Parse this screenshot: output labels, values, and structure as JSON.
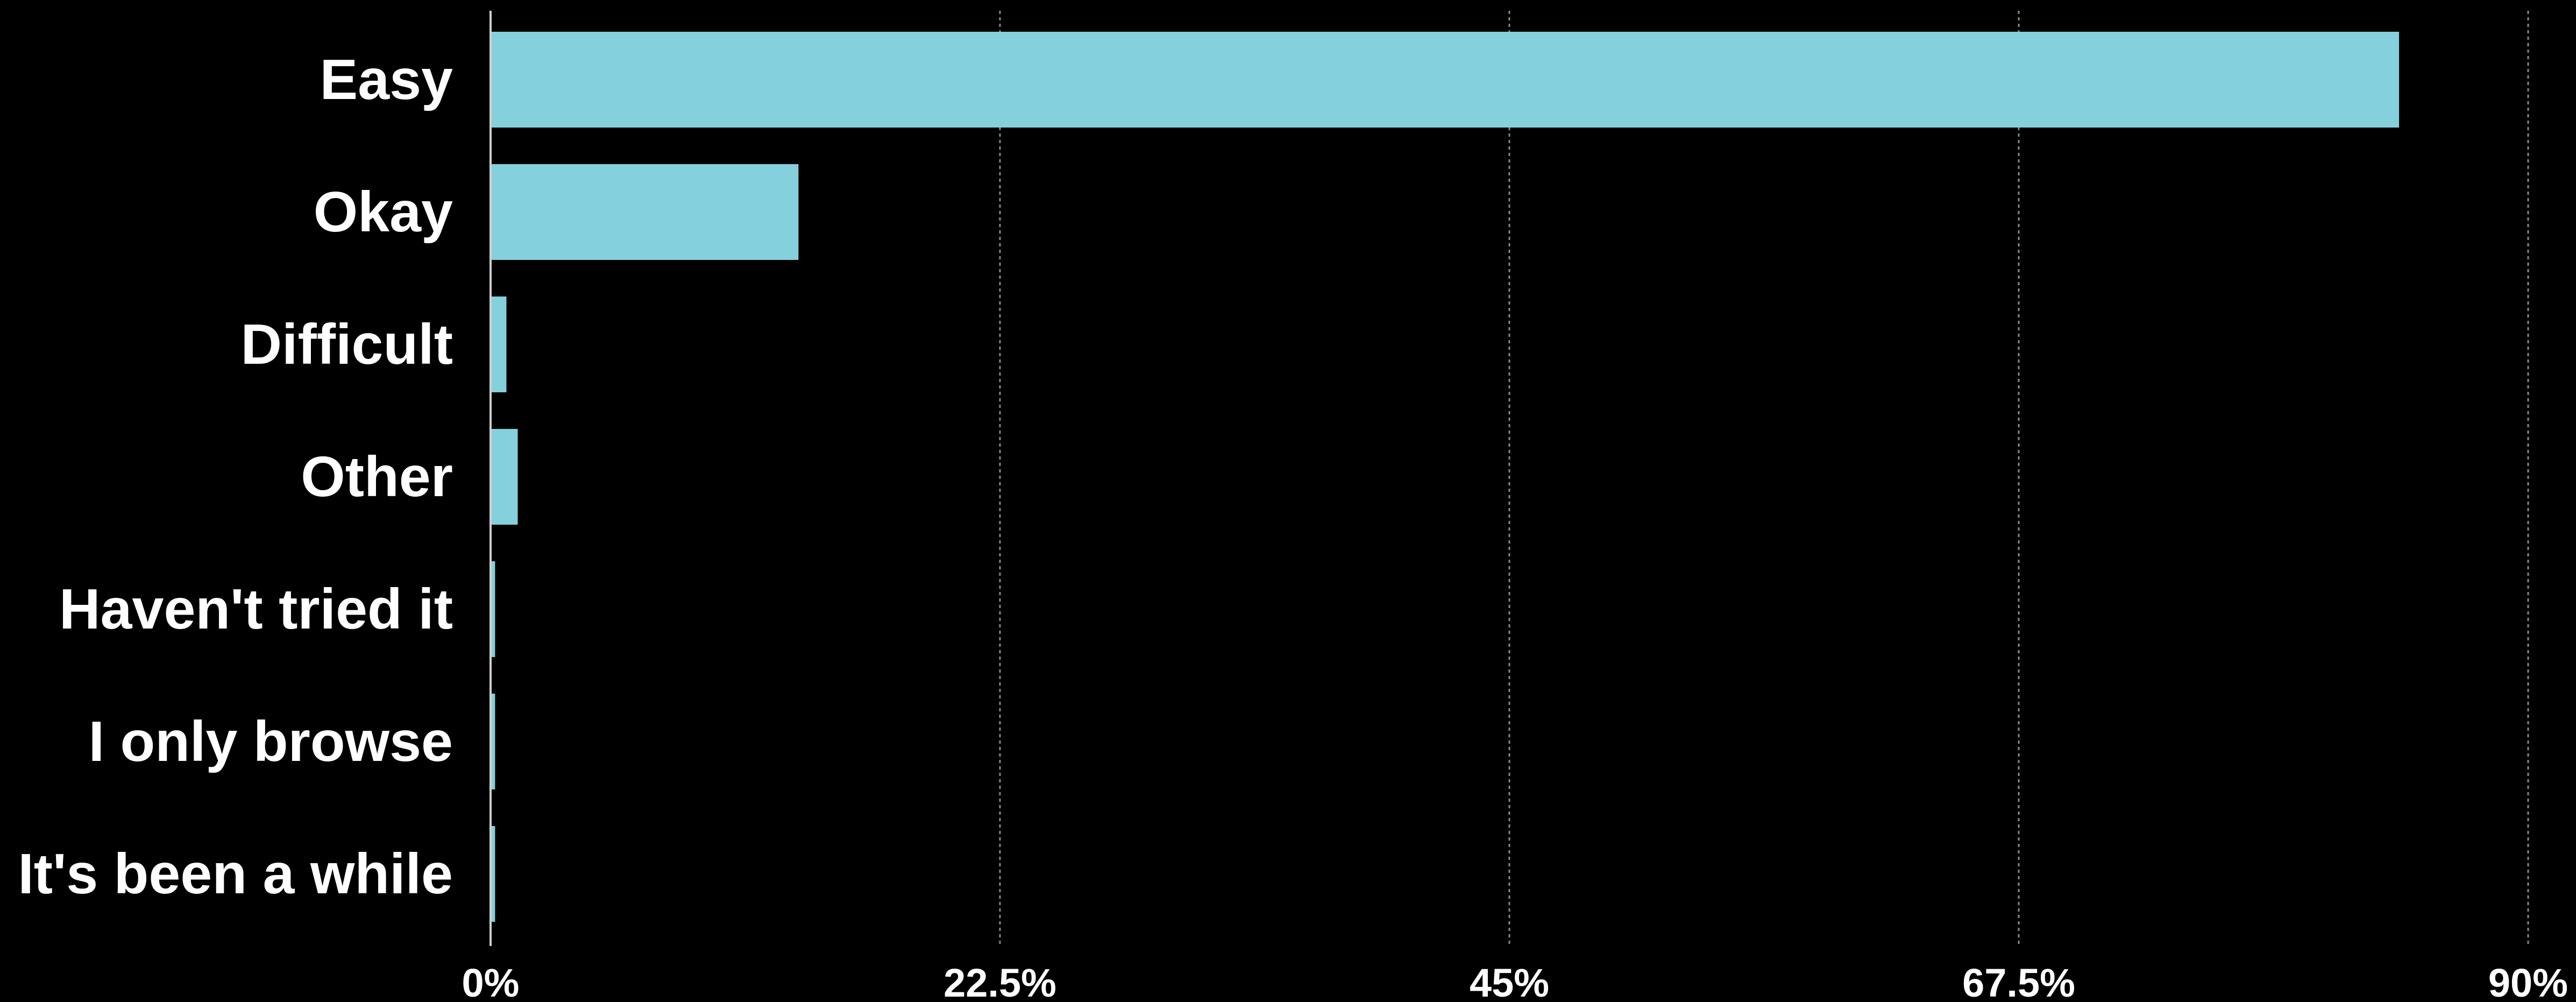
{
  "chart_data": {
    "type": "bar",
    "orientation": "horizontal",
    "categories": [
      "Easy",
      "Okay",
      "Difficult",
      "Other",
      "Haven't tried it",
      "I only browse",
      "It's been a while"
    ],
    "values": [
      84.3,
      13.6,
      0.7,
      1.2,
      0.2,
      0.2,
      0.2
    ],
    "title": "",
    "xlabel": "",
    "ylabel": "",
    "xlim": [
      0,
      90
    ],
    "x_ticks": [
      0,
      22.5,
      45,
      67.5,
      90
    ],
    "x_tick_labels": [
      "0%",
      "22.5%",
      "45%",
      "67.5%",
      "90%"
    ],
    "grid": "vertical dashed",
    "legend": "none",
    "colors": {
      "bar": "#84d0dc",
      "background": "#000000",
      "text": "#ffffff",
      "grid": "#8a8a8a",
      "axis": "#cfcfcf"
    }
  }
}
